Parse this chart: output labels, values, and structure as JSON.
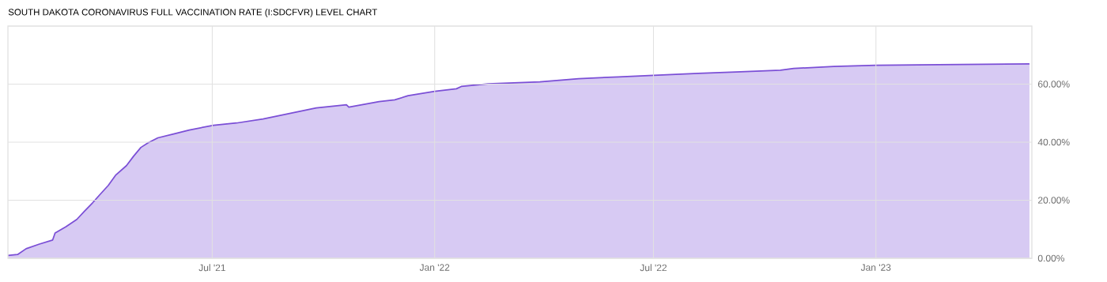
{
  "chart_data": {
    "type": "area",
    "title": "SOUTH DAKOTA CORONAVIRUS FULL VACCINATION RATE (I:SDCFVR) LEVEL CHART",
    "x": [
      "2021-01-13",
      "2021-01-21",
      "2021-01-28",
      "2021-02-08",
      "2021-02-19",
      "2021-02-21",
      "2021-03-02",
      "2021-03-11",
      "2021-03-17",
      "2021-03-24",
      "2021-03-30",
      "2021-04-06",
      "2021-04-12",
      "2021-04-21",
      "2021-04-27",
      "2021-05-03",
      "2021-05-09",
      "2021-05-17",
      "2021-05-30",
      "2021-06-12",
      "2021-07-02",
      "2021-07-21",
      "2021-08-12",
      "2021-09-03",
      "2021-09-25",
      "2021-10-20",
      "2021-10-22",
      "2021-11-16",
      "2021-11-29",
      "2021-12-10",
      "2022-01-01",
      "2022-01-19",
      "2022-01-23",
      "2022-02-14",
      "2022-03-29",
      "2022-04-30",
      "2022-06-02",
      "2022-07-01",
      "2022-08-07",
      "2022-09-07",
      "2022-10-14",
      "2022-10-25",
      "2022-11-27",
      "2023-01-01",
      "2023-02-22",
      "2023-05-08"
    ],
    "values": [
      1.0,
      1.3,
      3.3,
      4.9,
      6.3,
      8.7,
      10.9,
      13.4,
      16.1,
      19.1,
      21.9,
      25.1,
      28.6,
      31.9,
      35.2,
      38.2,
      39.8,
      41.5,
      42.8,
      44.2,
      45.8,
      46.6,
      48.0,
      49.9,
      51.8,
      52.9,
      52.1,
      54.0,
      54.6,
      56.0,
      57.5,
      58.4,
      59.2,
      60.1,
      60.8,
      61.9,
      62.5,
      63.0,
      63.7,
      64.2,
      64.8,
      65.4,
      66.1,
      66.5,
      66.7,
      67.0
    ],
    "color": "#7b4fd6",
    "xlim": [
      "2021-01-13",
      "2023-05-10"
    ],
    "ylim": [
      0,
      80
    ],
    "xticks": [
      {
        "value": "2021-07-01",
        "label": "Jul '21"
      },
      {
        "value": "2022-01-01",
        "label": "Jan '22"
      },
      {
        "value": "2022-07-01",
        "label": "Jul '22"
      },
      {
        "value": "2023-01-01",
        "label": "Jan '23"
      }
    ],
    "yticks": [
      {
        "value": 0,
        "label": "0.00%"
      },
      {
        "value": 20,
        "label": "20.00%"
      },
      {
        "value": 40,
        "label": "40.00%"
      },
      {
        "value": 60,
        "label": "60.00%"
      }
    ],
    "grid": true
  }
}
